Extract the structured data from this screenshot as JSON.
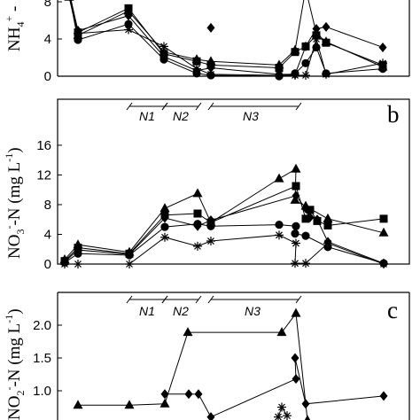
{
  "chart_data": [
    {
      "type": "line",
      "panel": "a",
      "ylabel": "NH4+-N",
      "ylabel_parts": {
        "base": "NH",
        "sub": "4",
        "sup": "+",
        "rest": " -"
      },
      "yticks": [
        "0",
        "4",
        "8"
      ],
      "ylim_visible": [
        0,
        9.2
      ],
      "series": [
        {
          "marker": "triangle",
          "x": [
            3,
            7,
            18,
            23,
            29,
            35,
            45,
            52,
            55,
            57,
            59,
            75
          ],
          "y": [
            8.5,
            4.4,
            7.0,
            2.6,
            1.8,
            1.6,
            1.2,
            2.8,
            9.4,
            4.6,
            3.7,
            1.0
          ]
        },
        {
          "marker": "square",
          "x": [
            3,
            7,
            18,
            23,
            29,
            35,
            45,
            52,
            55,
            57,
            59,
            75
          ],
          "y": [
            9.2,
            4.7,
            7.3,
            2.4,
            1.6,
            1.2,
            0.9,
            2.6,
            3.2,
            4.4,
            3.6,
            1.2
          ]
        },
        {
          "marker": "diamond",
          "x": [
            3,
            7,
            18,
            23,
            29,
            35,
            45,
            52,
            55,
            57,
            59,
            75
          ],
          "y": [
            9.0,
            4.9,
            6.5,
            2.1,
            0.6,
            0.9,
            0.2,
            0.2,
            3.2,
            5.1,
            5.3,
            3.1
          ]
        },
        {
          "marker": "circle",
          "x": [
            3,
            7,
            18,
            23,
            29,
            35,
            45,
            52,
            55,
            57,
            59,
            75
          ],
          "y": [
            8.8,
            3.9,
            5.6,
            1.8,
            0.3,
            0.1,
            0.0,
            0.3,
            1.4,
            3.1,
            0.3,
            0.8
          ]
        },
        {
          "marker": "asterisk",
          "x": [
            3,
            7,
            18,
            23,
            29,
            35,
            45,
            52,
            55,
            57,
            59,
            75
          ],
          "y": [
            9.1,
            4.6,
            5.0,
            3.2,
            0.8,
            0.2,
            0.1,
            0.1,
            0.1,
            4.0,
            0.2,
            1.4
          ]
        }
      ],
      "extra_diamond_point": {
        "x": 35,
        "y": 5.2
      }
    },
    {
      "type": "line",
      "panel": "b",
      "panel_label": "b",
      "ylabel": "NO3--N (mg L-1)",
      "ylabel_parts": {
        "base": "NO",
        "sub": "3",
        "sup": "-",
        "rest": "-N (mg L",
        "unit_sup": "-1",
        "close": ")"
      },
      "yticks": [
        "0",
        "4",
        "8",
        "12",
        "16"
      ],
      "ylim": [
        0,
        18.5
      ],
      "phases": [
        "N1",
        "N2",
        "N3"
      ],
      "series": [
        {
          "marker": "triangle",
          "x": [
            0,
            3,
            13,
            18,
            23,
            27,
            43,
            47,
            50,
            52,
            55,
            62
          ],
          "y": [
            0.6,
            2.6,
            1.6,
            7.5,
            9.5,
            5.6,
            11.5,
            12.8,
            8.6,
            7.8,
            6.1,
            4.2
          ]
        },
        {
          "marker": "square",
          "x": [
            0,
            3,
            13,
            18,
            23,
            27,
            47,
            49,
            51,
            53,
            55,
            62
          ],
          "y": [
            0.4,
            2.2,
            1.4,
            6.6,
            6.8,
            5.6,
            10.5,
            6.1,
            7.3,
            5.8,
            5.2,
            6.1
          ]
        },
        {
          "marker": "diamond",
          "x": [
            0,
            3,
            13,
            18,
            23,
            27,
            47,
            49,
            51,
            53,
            55,
            62
          ],
          "y": [
            0.3,
            1.9,
            1.3,
            6.2,
            5.1,
            5.9,
            9.2,
            7.5,
            6.3,
            6.0,
            3.0,
            0.1
          ]
        },
        {
          "marker": "circle",
          "x": [
            0,
            3,
            13,
            18,
            23,
            27,
            43,
            47,
            50,
            52,
            55,
            62
          ],
          "y": [
            0.2,
            1.4,
            1.2,
            5.0,
            5.4,
            5.1,
            5.3,
            5.1,
            4.1,
            3.8,
            2.3,
            0.1
          ]
        },
        {
          "marker": "asterisk",
          "x": [
            0,
            3,
            13,
            18,
            23,
            27,
            43,
            47,
            50,
            52,
            55,
            62
          ],
          "y": [
            0.0,
            0.0,
            0.0,
            3.6,
            2.4,
            3.1,
            3.9,
            2.8,
            0.1,
            0.1,
            2.8,
            0.0
          ]
        }
      ]
    },
    {
      "type": "line",
      "panel": "c",
      "panel_label": "c",
      "ylabel": "NO2--N (mg L-1)",
      "ylabel_parts": {
        "base": "NO",
        "sub": "2",
        "sup": "-",
        "rest": "-N (mg L",
        "unit_sup": "-1",
        "close": ")"
      },
      "yticks": [
        "1.0",
        "1.5",
        "2.0"
      ],
      "ylim_visible": [
        0.52,
        2.6
      ],
      "phases": [
        "N1",
        "N2",
        "N3"
      ],
      "series": [
        {
          "marker": "triangle",
          "x": [
            7,
            12,
            20,
            28,
            40,
            43,
            48
          ],
          "y": [
            0.78,
            0.78,
            0.8,
            1.89,
            1.89,
            2.18,
            0.55
          ]
        },
        {
          "marker": "diamond",
          "x": [
            20,
            23,
            27,
            35,
            43,
            47,
            49,
            62
          ],
          "y": [
            0.95,
            0.95,
            0.95,
            0.6,
            1.18,
            1.5,
            0.8,
            0.92
          ]
        },
        {
          "marker": "asterisk",
          "x": [
            38,
            40,
            42
          ],
          "y": [
            0.6,
            0.75,
            0.62
          ]
        }
      ]
    }
  ]
}
